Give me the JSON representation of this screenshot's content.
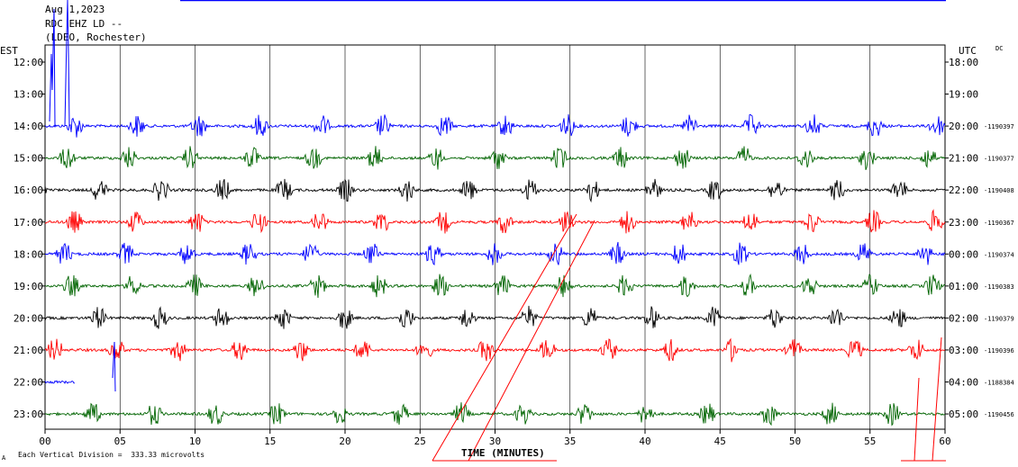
{
  "header": {
    "date": "Aug 1,2023",
    "station": "RDC EHZ LD --",
    "network": "(LDEO, Rochester)"
  },
  "labels": {
    "left_tz": "EST",
    "right_tz": "UTC",
    "dc": "DC",
    "xlabel": "TIME (MINUTES)",
    "footer": "Each Vertical Division =  333.33 microvolts",
    "corner": "A"
  },
  "chart_data": {
    "type": "line",
    "title": "",
    "xlabel": "TIME (MINUTES)",
    "ylabel": "",
    "xlim": [
      0,
      60
    ],
    "x_ticks": [
      "00",
      "05",
      "10",
      "15",
      "20",
      "25",
      "30",
      "35",
      "40",
      "45",
      "50",
      "55",
      "60"
    ],
    "grid": true,
    "colors": [
      "#0000ff",
      "#006400",
      "#000000",
      "#ff0000"
    ],
    "rows": [
      {
        "est": "12:00",
        "utc": "18:00",
        "count": "",
        "color": "#0000ff",
        "start": 0,
        "end": 0
      },
      {
        "est": "13:00",
        "utc": "19:00",
        "count": "",
        "color": "#006400",
        "start": 0,
        "end": 0
      },
      {
        "est": "14:00",
        "utc": "20:00",
        "count": "-1190397",
        "color": "#0000ff",
        "start": 0,
        "end": 60
      },
      {
        "est": "15:00",
        "utc": "21:00",
        "count": "-1190377",
        "color": "#006400",
        "start": 0,
        "end": 60
      },
      {
        "est": "16:00",
        "utc": "22:00",
        "count": "-1190408",
        "color": "#000000",
        "start": 0,
        "end": 60
      },
      {
        "est": "17:00",
        "utc": "23:00",
        "count": "-1190367",
        "color": "#ff0000",
        "start": 0,
        "end": 60
      },
      {
        "est": "18:00",
        "utc": "00:00",
        "count": "-1190374",
        "color": "#0000ff",
        "start": 0,
        "end": 60
      },
      {
        "est": "19:00",
        "utc": "01:00",
        "count": "-1190383",
        "color": "#006400",
        "start": 0,
        "end": 60
      },
      {
        "est": "20:00",
        "utc": "02:00",
        "count": "-1190379",
        "color": "#000000",
        "start": 0,
        "end": 60
      },
      {
        "est": "21:00",
        "utc": "03:00",
        "count": "-1190396",
        "color": "#ff0000",
        "start": 0,
        "end": 60
      },
      {
        "est": "22:00",
        "utc": "04:00",
        "count": "-1188384",
        "color": "#0000ff",
        "start": 0,
        "end": 2
      },
      {
        "est": "23:00",
        "utc": "05:00",
        "count": "-1190456",
        "color": "#006400",
        "start": 0,
        "end": 60
      }
    ]
  }
}
